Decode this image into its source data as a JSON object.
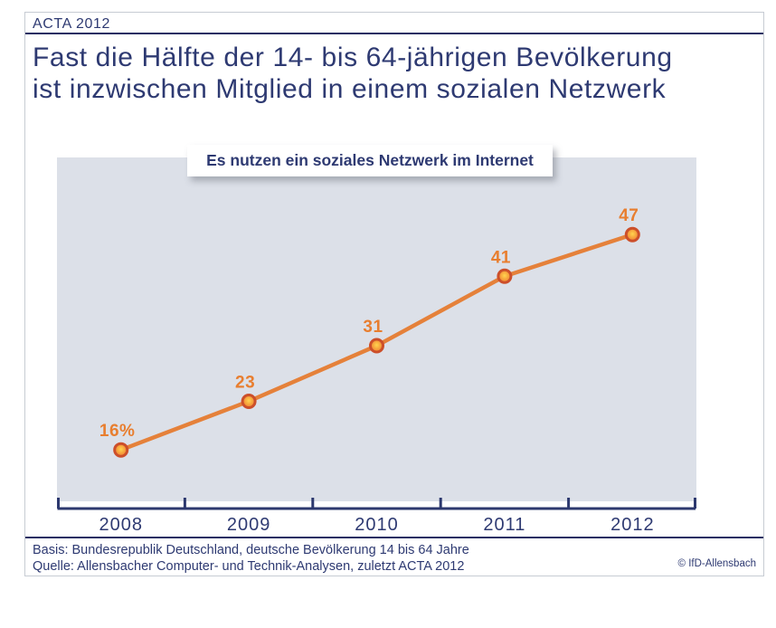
{
  "header": {
    "brand": "ACTA 2012",
    "title_line1": "Fast die Hälfte der 14- bis 64-jährigen Bevölkerung",
    "title_line2": "ist inzwischen Mitglied in einem sozialen Netzwerk"
  },
  "chart_data": {
    "type": "line",
    "title": "Es nutzen ein soziales Netzwerk im Internet",
    "categories": [
      "2008",
      "2009",
      "2010",
      "2011",
      "2012"
    ],
    "values": [
      16,
      23,
      31,
      41,
      47
    ],
    "value_labels": [
      "16%",
      "23",
      "31",
      "41",
      "47"
    ],
    "xlabel": "",
    "ylabel": "",
    "ylim": [
      8.6,
      58.1
    ],
    "grid": false,
    "legend": false,
    "plot_bg": "#dce0e8",
    "line_color": "#e5813a",
    "marker_stroke": "#cc4f2a",
    "marker_fill_center": "#ffd44f",
    "marker_fill_edge": "#ef7d30",
    "label_color": "#e87e2f",
    "axis_color": "#2c386e"
  },
  "footer": {
    "basis": "Basis: Bundesrepublik Deutschland, deutsche Bevölkerung 14 bis 64 Jahre",
    "quelle": "Quelle: Allensbacher Computer- und Technik-Analysen, zuletzt ACTA 2012",
    "copyright": "© IfD-Allensbach"
  },
  "colors": {
    "navy_text": "#2e3a72",
    "navy_rule": "#232f63",
    "accent_orange": "#e5813a",
    "plot_background": "#dce0e8"
  }
}
